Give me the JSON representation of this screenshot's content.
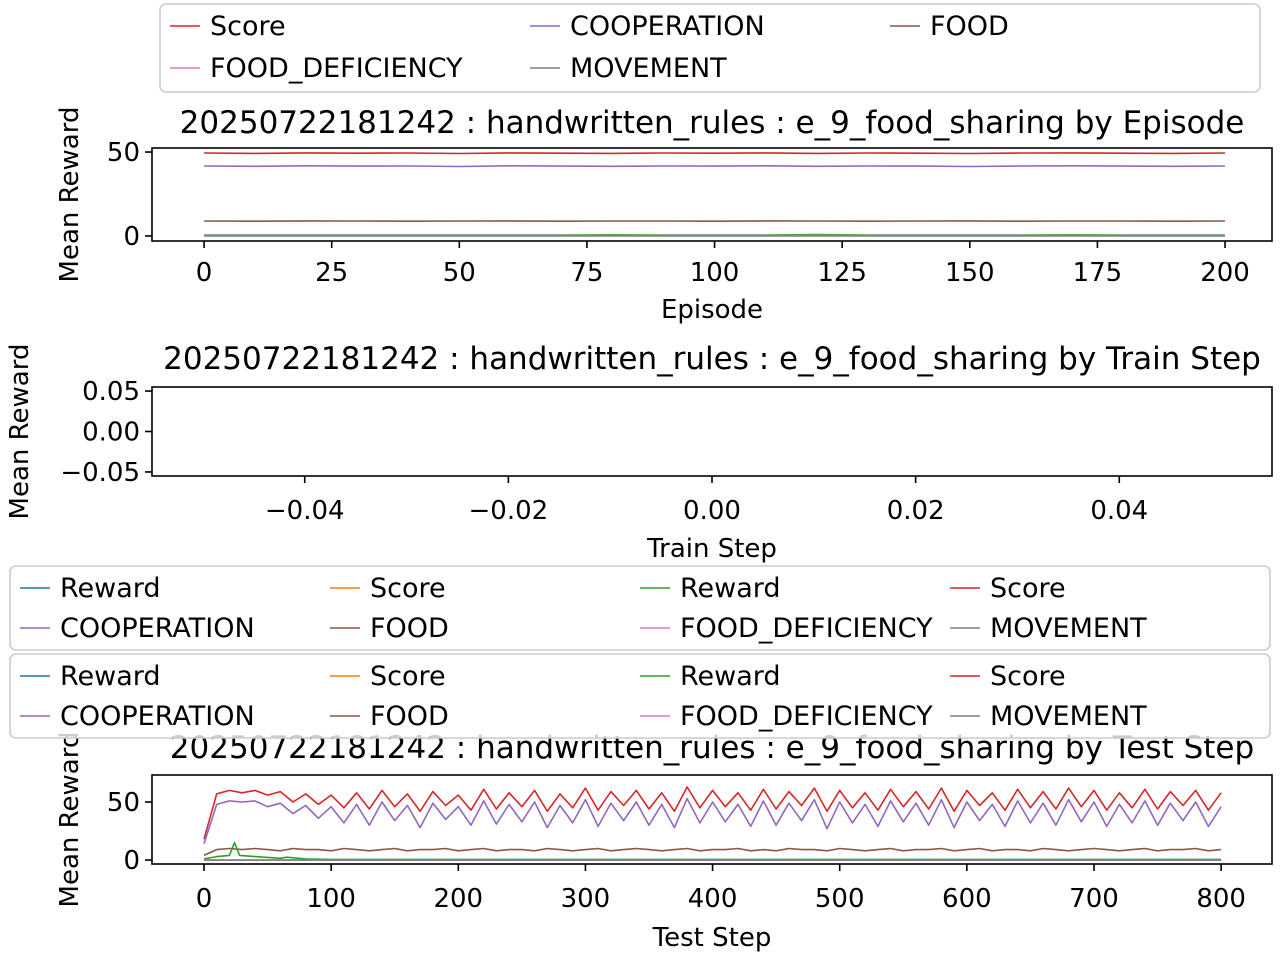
{
  "chart_data": [
    {
      "type": "line",
      "title": "20250722181242 : handwritten_rules : e_9_food_sharing by Episode",
      "xlabel": "Episode",
      "ylabel": "Mean Reward",
      "xlim": [
        -10.2,
        209.2
      ],
      "ylim": [
        -3,
        52.4
      ],
      "xticks": [
        0,
        25,
        50,
        75,
        100,
        125,
        150,
        175,
        200
      ],
      "xtick_labels": [
        "0",
        "25",
        "50",
        "75",
        "100",
        "125",
        "150",
        "175",
        "200"
      ],
      "yticks": [
        0,
        50
      ],
      "ytick_labels": [
        "0",
        "50"
      ],
      "grid": false,
      "legend_placement": "upper-left (overflowing above)",
      "legend": [
        {
          "label": "Score",
          "color": "#d62728"
        },
        {
          "label": "COOPERATION",
          "color": "#9467bd"
        },
        {
          "label": "FOOD",
          "color": "#8c564b"
        },
        {
          "label": "FOOD_DEFICIENCY",
          "color": "#e377c2"
        },
        {
          "label": "MOVEMENT",
          "color": "#7f7f7f"
        }
      ],
      "x_step": 10,
      "series": [
        {
          "name": "Reward",
          "color": "#2ca02c",
          "values": [
            0.6,
            0.5,
            0.6,
            0.5,
            0.6,
            0.5,
            0.6,
            0.5,
            0.7,
            0.5,
            0.6,
            0.5,
            0.8,
            0.5,
            0.6,
            0.5,
            0.6,
            0.7,
            0.5,
            0.6,
            0.5
          ]
        },
        {
          "name": "Score",
          "color": "#d62728",
          "values": [
            49.4,
            49.2,
            49.5,
            49.3,
            49.4,
            49.1,
            49.5,
            49.3,
            49.2,
            49.4,
            49.3,
            49.5,
            49.2,
            49.4,
            49.3,
            49.1,
            49.4,
            49.5,
            49.3,
            49.2,
            49.4
          ]
        },
        {
          "name": "COOPERATION",
          "color": "#9467bd",
          "values": [
            41.7,
            41.5,
            41.8,
            41.6,
            41.7,
            41.4,
            41.8,
            41.6,
            41.5,
            41.7,
            41.6,
            41.8,
            41.5,
            41.7,
            41.6,
            41.4,
            41.7,
            41.8,
            41.6,
            41.5,
            41.7
          ]
        },
        {
          "name": "FOOD",
          "color": "#8c564b",
          "values": [
            8.9,
            8.8,
            9.0,
            8.9,
            8.8,
            8.9,
            9.0,
            8.8,
            8.9,
            8.9,
            8.8,
            9.0,
            8.9,
            8.8,
            8.9,
            9.0,
            8.8,
            8.9,
            8.9,
            8.8,
            8.9
          ]
        },
        {
          "name": "FOOD_DEFICIENCY",
          "color": "#e377c2",
          "values": [
            0.2,
            0.2,
            0.2,
            0.2,
            0.2,
            0.2,
            0.2,
            0.2,
            0.2,
            0.2,
            0.2,
            0.2,
            0.2,
            0.2,
            0.2,
            0.2,
            0.2,
            0.2,
            0.2,
            0.2,
            0.2
          ]
        },
        {
          "name": "MOVEMENT",
          "color": "#7f7f7f",
          "values": [
            0,
            0,
            0,
            0,
            0,
            0,
            0,
            0,
            0,
            0,
            0,
            0,
            0,
            0,
            0,
            0,
            0,
            0,
            0,
            0,
            0
          ]
        }
      ]
    },
    {
      "type": "line",
      "title": "20250722181242 : handwritten_rules : e_9_food_sharing by Train Step",
      "xlabel": "Train Step",
      "ylabel": "Mean Reward",
      "xlim": [
        -0.055,
        0.055
      ],
      "ylim": [
        -0.055,
        0.055
      ],
      "xticks": [
        -0.04,
        -0.02,
        0.0,
        0.02,
        0.04
      ],
      "xtick_labels": [
        "−0.04",
        "−0.02",
        "0.00",
        "0.02",
        "0.04"
      ],
      "yticks": [
        0.05,
        0.0,
        -0.05
      ],
      "ytick_labels": [
        "0.05",
        "0.00",
        "−0.05"
      ],
      "grid": false,
      "legend_placement": "lower-right (overflowing below, drawn twice)",
      "legend": [
        {
          "label": "Reward",
          "color": "#1f77b4"
        },
        {
          "label": "Score",
          "color": "#ff7f0e"
        },
        {
          "label": "Reward",
          "color": "#2ca02c"
        },
        {
          "label": "Score",
          "color": "#d62728"
        },
        {
          "label": "COOPERATION",
          "color": "#9467bd"
        },
        {
          "label": "FOOD",
          "color": "#8c564b"
        },
        {
          "label": "FOOD_DEFICIENCY",
          "color": "#e377c2"
        },
        {
          "label": "MOVEMENT",
          "color": "#7f7f7f"
        }
      ],
      "series": []
    },
    {
      "type": "line",
      "title": "20250722181242 : handwritten_rules : e_9_food_sharing by Test Step",
      "xlabel": "Test Step",
      "ylabel": "Mean Reward",
      "xlim": [
        -40.9,
        840
      ],
      "ylim": [
        -3.4,
        73.3
      ],
      "xticks": [
        0,
        100,
        200,
        300,
        400,
        500,
        600,
        700,
        800
      ],
      "xtick_labels": [
        "0",
        "100",
        "200",
        "300",
        "400",
        "500",
        "600",
        "700",
        "800"
      ],
      "yticks": [
        0,
        50
      ],
      "ytick_labels": [
        "0",
        "50"
      ],
      "grid": false,
      "x_step": 10,
      "series": [
        {
          "name": "Score",
          "color": "#d62728",
          "values": [
            18,
            57,
            60,
            58,
            60,
            56,
            59,
            50,
            57,
            48,
            56,
            45,
            58,
            44,
            60,
            46,
            57,
            42,
            59,
            47,
            56,
            43,
            61,
            44,
            58,
            46,
            60,
            42,
            57,
            45,
            62,
            43,
            59,
            47,
            60,
            44,
            58,
            42,
            63,
            45,
            60,
            46,
            58,
            43,
            61,
            44,
            59,
            47,
            62,
            42,
            60,
            45,
            58,
            43,
            61,
            46,
            59,
            44,
            62,
            42,
            60,
            47,
            58,
            43,
            61,
            45,
            59,
            44,
            62,
            46,
            60,
            43,
            58,
            45,
            61,
            44,
            59,
            47,
            60,
            43,
            58
          ]
        },
        {
          "name": "COOPERATION",
          "color": "#9467bd",
          "values": [
            14,
            48,
            51,
            50,
            51,
            46,
            49,
            40,
            47,
            36,
            46,
            32,
            48,
            30,
            50,
            34,
            47,
            28,
            49,
            35,
            46,
            30,
            51,
            31,
            48,
            33,
            50,
            28,
            47,
            32,
            52,
            29,
            49,
            34,
            50,
            30,
            48,
            28,
            53,
            32,
            50,
            33,
            48,
            29,
            51,
            30,
            49,
            34,
            52,
            27,
            50,
            32,
            48,
            29,
            51,
            33,
            49,
            30,
            52,
            28,
            50,
            34,
            48,
            29,
            51,
            32,
            49,
            30,
            52,
            33,
            50,
            29,
            48,
            32,
            51,
            30,
            49,
            34,
            50,
            29,
            46
          ]
        },
        {
          "name": "FOOD",
          "color": "#8c564b",
          "values": [
            4,
            9,
            10,
            9,
            10,
            9,
            8,
            10,
            9,
            9,
            8,
            10,
            9,
            8,
            9,
            10,
            8,
            9,
            9,
            10,
            8,
            9,
            10,
            8,
            9,
            9,
            8,
            10,
            9,
            8,
            9,
            10,
            8,
            9,
            10,
            9,
            8,
            9,
            10,
            8,
            9,
            9,
            10,
            8,
            9,
            8,
            10,
            9,
            9,
            8,
            10,
            9,
            8,
            9,
            10,
            8,
            9,
            9,
            10,
            8,
            9,
            10,
            8,
            9,
            9,
            8,
            10,
            9,
            8,
            9,
            10,
            9,
            8,
            9,
            10,
            8,
            9,
            9,
            10,
            8,
            9
          ]
        },
        {
          "name": "Reward",
          "color": "#2ca02c",
          "x": [
            0,
            10,
            20,
            24,
            28,
            40,
            60,
            65,
            80,
            100,
            800
          ],
          "values": [
            1,
            3,
            4,
            15,
            4,
            3,
            1.5,
            2.5,
            1,
            0.6,
            0.6
          ]
        },
        {
          "name": "FOOD_DEFICIENCY",
          "color": "#e377c2",
          "x": [
            0,
            800
          ],
          "values": [
            0,
            0
          ]
        },
        {
          "name": "MOVEMENT",
          "color": "#7f7f7f",
          "x": [
            0,
            800
          ],
          "values": [
            0,
            0
          ]
        }
      ]
    }
  ]
}
